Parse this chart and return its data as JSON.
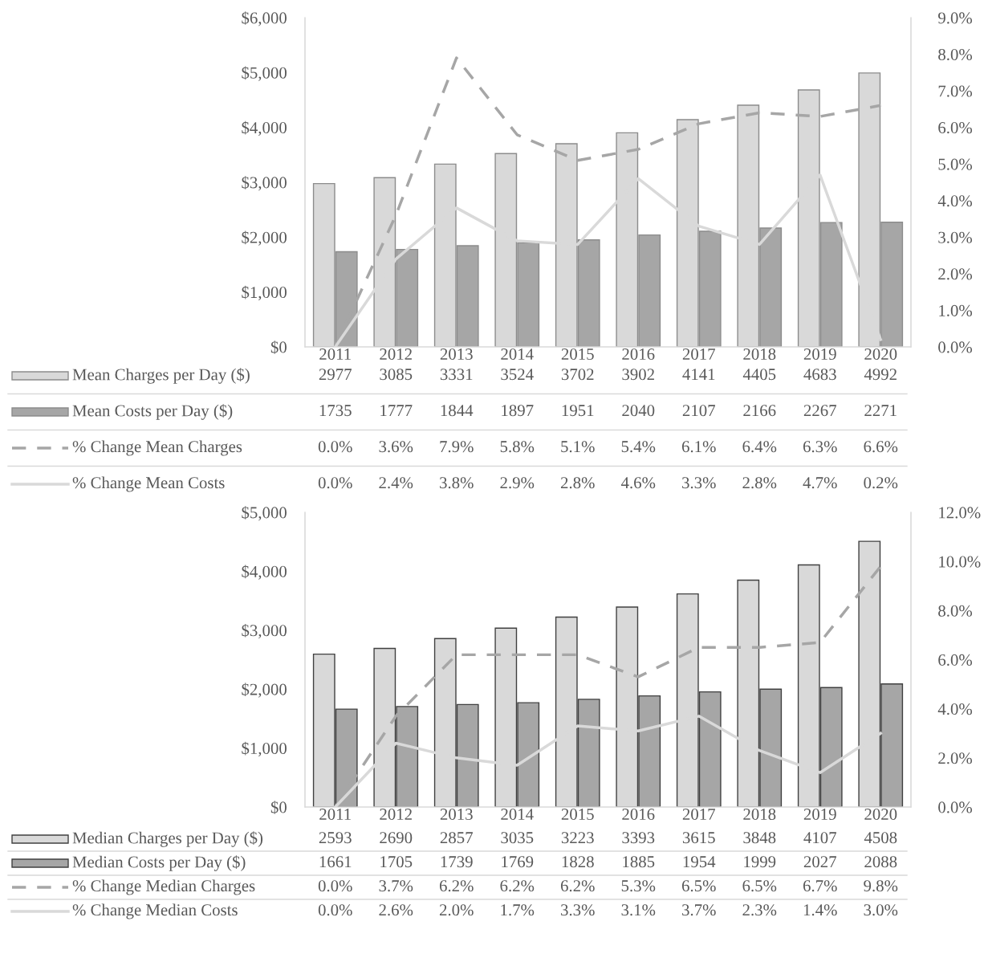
{
  "chart_data": [
    {
      "type": "bar",
      "categories": [
        "2011",
        "2012",
        "2013",
        "2014",
        "2015",
        "2016",
        "2017",
        "2018",
        "2019",
        "2020"
      ],
      "ylim": [
        0,
        6000
      ],
      "yticks": [
        {
          "value": 0,
          "label": "$0"
        },
        {
          "value": 1000,
          "label": "$1,000"
        },
        {
          "value": 2000,
          "label": "$2,000"
        },
        {
          "value": 3000,
          "label": "$3,000"
        },
        {
          "value": 4000,
          "label": "$4,000"
        },
        {
          "value": 5000,
          "label": "$5,000"
        },
        {
          "value": 6000,
          "label": "$6,000"
        }
      ],
      "y2lim": [
        0,
        9
      ],
      "y2ticks": [
        {
          "value": 0,
          "label": "0.0%"
        },
        {
          "value": 1,
          "label": "1.0%"
        },
        {
          "value": 2,
          "label": "2.0%"
        },
        {
          "value": 3,
          "label": "3.0%"
        },
        {
          "value": 4,
          "label": "4.0%"
        },
        {
          "value": 5,
          "label": "5.0%"
        },
        {
          "value": 6,
          "label": "6.0%"
        },
        {
          "value": 7,
          "label": "7.0%"
        },
        {
          "value": 8,
          "label": "8.0%"
        },
        {
          "value": 9,
          "label": "9.0%"
        }
      ],
      "legend": "bottom",
      "series": [
        {
          "name": "Mean Charges per Day ($)",
          "color": "#d9d9d9",
          "values": [
            2977,
            3085,
            3331,
            3524,
            3702,
            3902,
            4141,
            4405,
            4683,
            4992
          ],
          "value_labels": [
            "2977",
            "3085",
            "3331",
            "3524",
            "3702",
            "3902",
            "4141",
            "4405",
            "4683",
            "4992"
          ]
        },
        {
          "name": "Mean Costs per Day ($)",
          "color": "#a6a6a6",
          "values": [
            1735,
            1777,
            1844,
            1897,
            1951,
            2040,
            2107,
            2166,
            2267,
            2271
          ],
          "value_labels": [
            "1735",
            "1777",
            "1844",
            "1897",
            "1951",
            "2040",
            "2107",
            "2166",
            "2267",
            "2271"
          ]
        },
        {
          "name": "% Change Mean Charges",
          "type": "line",
          "axis": "y2",
          "line_style": "dashed",
          "color": "#a6a6a6",
          "values": [
            0.0,
            3.6,
            7.9,
            5.8,
            5.1,
            5.4,
            6.1,
            6.4,
            6.3,
            6.6
          ],
          "value_labels": [
            "0.0%",
            "3.6%",
            "7.9%",
            "5.8%",
            "5.1%",
            "5.4%",
            "6.1%",
            "6.4%",
            "6.3%",
            "6.6%"
          ]
        },
        {
          "name": "% Change Mean Costs",
          "type": "line",
          "axis": "y2",
          "line_style": "solid",
          "color": "#d9d9d9",
          "values": [
            0.0,
            2.4,
            3.8,
            2.9,
            2.8,
            4.6,
            3.3,
            2.8,
            4.7,
            0.2
          ],
          "value_labels": [
            "0.0%",
            "2.4%",
            "3.8%",
            "2.9%",
            "2.8%",
            "4.6%",
            "3.3%",
            "2.8%",
            "4.7%",
            "0.2%"
          ]
        }
      ]
    },
    {
      "type": "bar",
      "categories": [
        "2011",
        "2012",
        "2013",
        "2014",
        "2015",
        "2016",
        "2017",
        "2018",
        "2019",
        "2020"
      ],
      "ylim": [
        0,
        5000
      ],
      "yticks": [
        {
          "value": 0,
          "label": "$0"
        },
        {
          "value": 1000,
          "label": "$1,000"
        },
        {
          "value": 2000,
          "label": "$2,000"
        },
        {
          "value": 3000,
          "label": "$3,000"
        },
        {
          "value": 4000,
          "label": "$4,000"
        },
        {
          "value": 5000,
          "label": "$5,000"
        }
      ],
      "y2lim": [
        0,
        12
      ],
      "y2ticks": [
        {
          "value": 0,
          "label": "0.0%"
        },
        {
          "value": 2,
          "label": "2.0%"
        },
        {
          "value": 4,
          "label": "4.0%"
        },
        {
          "value": 6,
          "label": "6.0%"
        },
        {
          "value": 8,
          "label": "8.0%"
        },
        {
          "value": 10,
          "label": "10.0%"
        },
        {
          "value": 12,
          "label": "12.0%"
        }
      ],
      "legend": "bottom",
      "series": [
        {
          "name": "Median Charges per Day ($)",
          "color": "#d9d9d9",
          "values": [
            2593,
            2690,
            2857,
            3035,
            3223,
            3393,
            3615,
            3848,
            4107,
            4508
          ],
          "value_labels": [
            "2593",
            "2690",
            "2857",
            "3035",
            "3223",
            "3393",
            "3615",
            "3848",
            "4107",
            "4508"
          ]
        },
        {
          "name": "Median Costs per Day ($)",
          "color": "#a6a6a6",
          "values": [
            1661,
            1705,
            1739,
            1769,
            1828,
            1885,
            1954,
            1999,
            2027,
            2088
          ],
          "value_labels": [
            "1661",
            "1705",
            "1739",
            "1769",
            "1828",
            "1885",
            "1954",
            "1999",
            "2027",
            "2088"
          ]
        },
        {
          "name": "% Change Median Charges",
          "type": "line",
          "axis": "y2",
          "line_style": "dashed",
          "color": "#a6a6a6",
          "values": [
            0.0,
            3.7,
            6.2,
            6.2,
            6.2,
            5.3,
            6.5,
            6.5,
            6.7,
            9.8
          ],
          "value_labels": [
            "0.0%",
            "3.7%",
            "6.2%",
            "6.2%",
            "6.2%",
            "5.3%",
            "6.5%",
            "6.5%",
            "6.7%",
            "9.8%"
          ]
        },
        {
          "name": "% Change Median Costs",
          "type": "line",
          "axis": "y2",
          "line_style": "solid",
          "color": "#d9d9d9",
          "values": [
            0.0,
            2.6,
            2.0,
            1.7,
            3.3,
            3.1,
            3.7,
            2.3,
            1.4,
            3.0
          ],
          "value_labels": [
            "0.0%",
            "2.6%",
            "2.0%",
            "1.7%",
            "3.3%",
            "3.1%",
            "3.7%",
            "2.3%",
            "1.4%",
            "3.0%"
          ]
        }
      ]
    }
  ]
}
